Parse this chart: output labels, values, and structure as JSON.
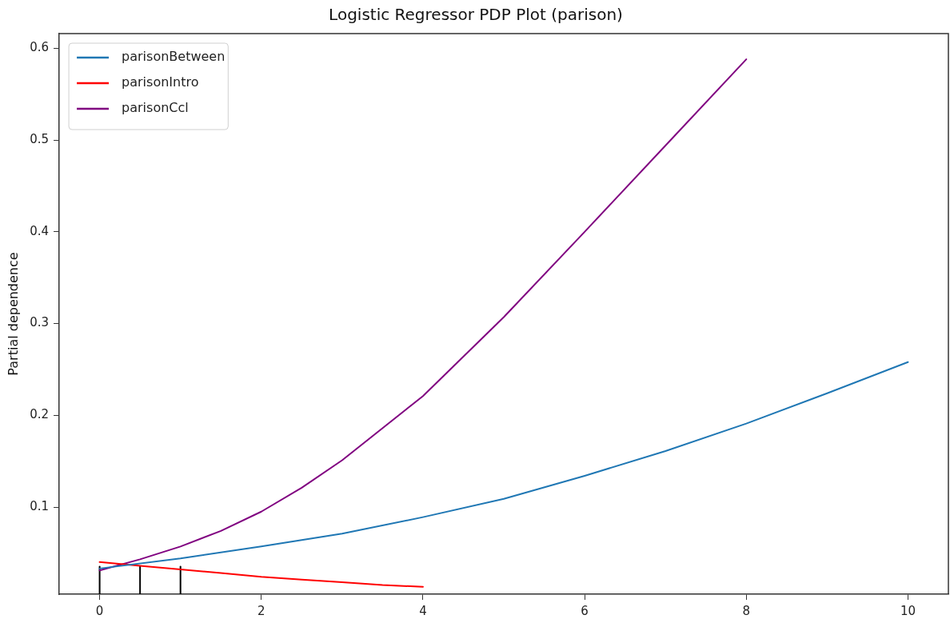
{
  "chart_data": {
    "type": "line",
    "title": "Logistic Regressor PDP Plot (parison)",
    "ylabel": "Partial dependence",
    "series": [
      {
        "name": "parisonBetween",
        "color": "#1f77b4",
        "x": [
          0,
          1,
          2,
          3,
          4,
          5,
          6,
          7,
          8,
          9,
          10
        ],
        "values": [
          0.033,
          0.044,
          0.057,
          0.071,
          0.089,
          0.109,
          0.134,
          0.161,
          0.191,
          0.224,
          0.258
        ]
      },
      {
        "name": "parisonIntro",
        "color": "#ff0000",
        "x": [
          0,
          0.5,
          1,
          1.5,
          2,
          2.5,
          3,
          3.5,
          4
        ],
        "values": [
          0.04,
          0.036,
          0.032,
          0.028,
          0.024,
          0.021,
          0.018,
          0.015,
          0.013
        ]
      },
      {
        "name": "parisonCcl",
        "color": "#800080",
        "x": [
          0,
          0.5,
          1,
          1.5,
          2,
          2.5,
          3,
          4,
          5,
          6,
          7,
          8
        ],
        "values": [
          0.031,
          0.043,
          0.057,
          0.074,
          0.095,
          0.121,
          0.151,
          0.221,
          0.307,
          0.4,
          0.494,
          0.588
        ]
      },
      {
        "color": "#000000",
        "x": [
          0,
          0
        ],
        "values": [
          0.005,
          0.035
        ]
      },
      {
        "color": "#000000",
        "x": [
          0.5,
          0.5
        ],
        "values": [
          0.005,
          0.035
        ]
      },
      {
        "color": "#000000",
        "x": [
          1,
          1
        ],
        "values": [
          0.005,
          0.035
        ]
      }
    ],
    "xlim": [
      -0.5,
      10.5
    ],
    "xticks": [
      0,
      2,
      4,
      6,
      8,
      10
    ],
    "ylim": [
      0.005,
      0.616
    ],
    "yticks": [
      0.1,
      0.2,
      0.3,
      0.4,
      0.5,
      0.6
    ],
    "grid": false,
    "legend": "top left",
    "marker": "none",
    "line_style": "solid"
  }
}
